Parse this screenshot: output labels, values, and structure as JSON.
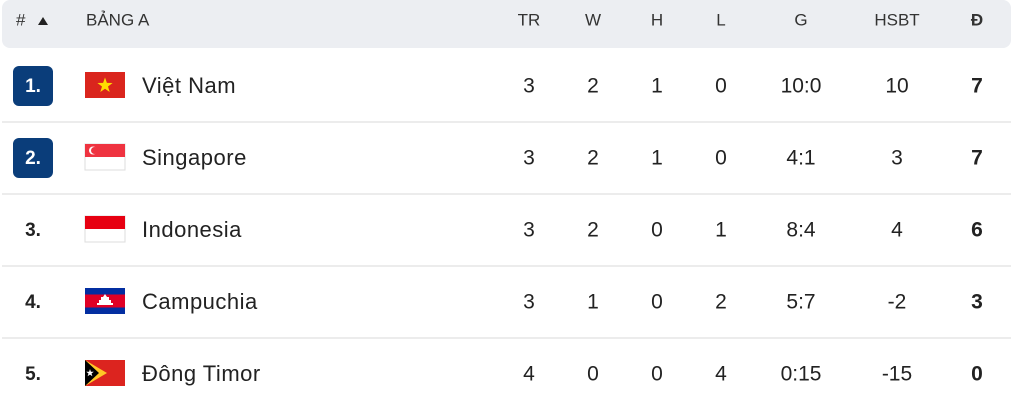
{
  "header": {
    "rank": "#",
    "group": "BẢNG A",
    "columns": [
      "TR",
      "W",
      "H",
      "L",
      "G",
      "HSBT",
      "Đ"
    ]
  },
  "table": {
    "rows": [
      [
        "1.",
        "Việt Nam",
        3,
        2,
        1,
        0,
        "10:0",
        10,
        7
      ],
      [
        "2.",
        "Singapore",
        3,
        2,
        1,
        0,
        "4:1",
        3,
        7
      ],
      [
        "3.",
        "Indonesia",
        3,
        2,
        0,
        1,
        "8:4",
        4,
        6
      ],
      [
        "4.",
        "Campuchia",
        3,
        1,
        0,
        2,
        "5:7",
        -2,
        3
      ],
      [
        "5.",
        "Đông Timor",
        4,
        0,
        0,
        4,
        "0:15",
        -15,
        0
      ]
    ]
  }
}
